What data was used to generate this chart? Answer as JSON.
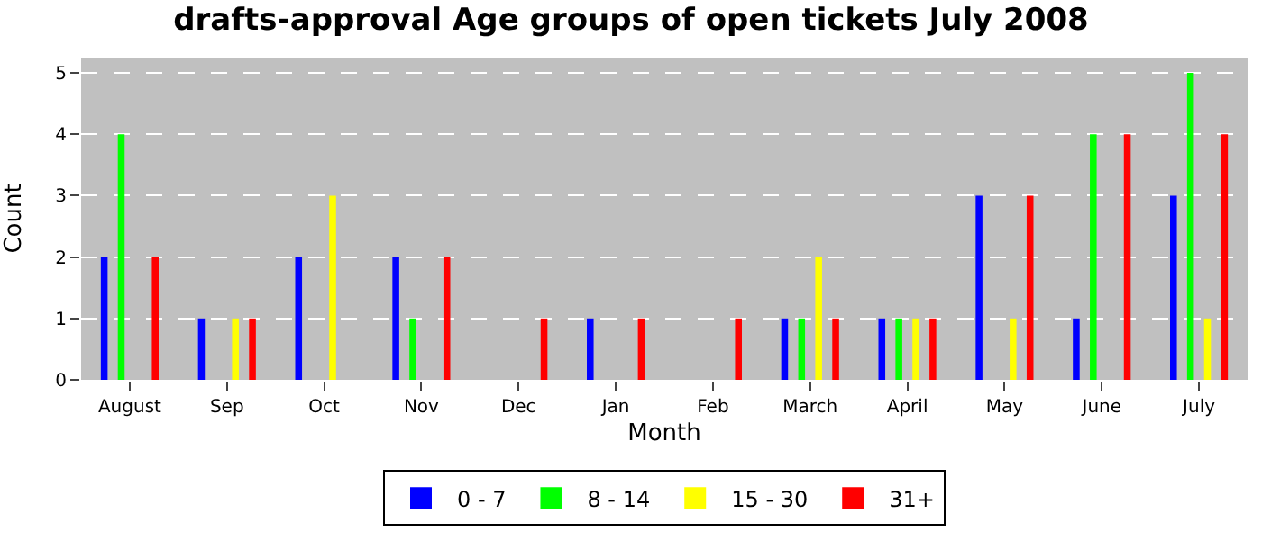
{
  "chart_data": {
    "type": "bar",
    "title": "drafts-approval Age groups of open tickets July 2008",
    "xlabel": "Month",
    "ylabel": "Count",
    "categories": [
      "August",
      "Sep",
      "Oct",
      "Nov",
      "Dec",
      "Jan",
      "Feb",
      "March",
      "April",
      "May",
      "June",
      "July"
    ],
    "series": [
      {
        "name": "0 - 7",
        "color": "#0000ff",
        "values": [
          2,
          1,
          2,
          2,
          0,
          1,
          0,
          1,
          1,
          3,
          1,
          3
        ]
      },
      {
        "name": "8 - 14",
        "color": "#00ff00",
        "values": [
          4,
          0,
          0,
          1,
          0,
          0,
          0,
          1,
          1,
          0,
          4,
          5
        ]
      },
      {
        "name": "15 - 30",
        "color": "#ffff00",
        "values": [
          0,
          1,
          3,
          0,
          0,
          0,
          0,
          2,
          1,
          1,
          0,
          1
        ]
      },
      {
        "name": "31+",
        "color": "#ff0000",
        "values": [
          2,
          1,
          0,
          2,
          1,
          1,
          1,
          1,
          1,
          3,
          4,
          4
        ]
      }
    ],
    "ylim": [
      0,
      5.25
    ],
    "yticks": [
      0,
      1,
      2,
      3,
      4,
      5
    ],
    "grid": "y",
    "legend": "bottom"
  }
}
